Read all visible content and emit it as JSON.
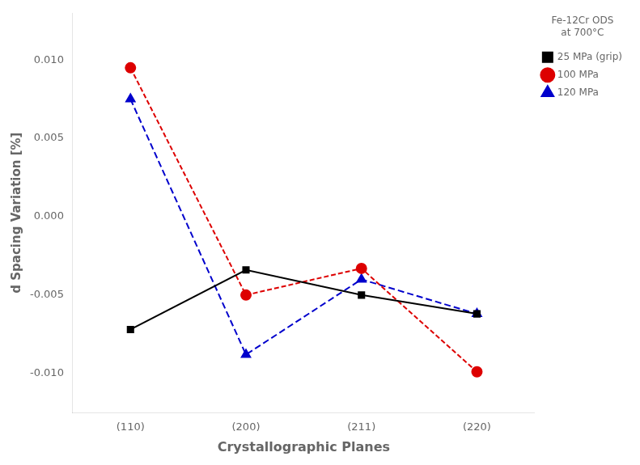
{
  "chart_data": {
    "type": "line",
    "xlabel": "Crystallographic Planes",
    "ylabel": "d Spacing Variation [%]",
    "legend_title": [
      "Fe-12Cr ODS",
      "at 700°C"
    ],
    "categories": [
      "(110)",
      "(200)",
      "(211)",
      "(220)"
    ],
    "series": [
      {
        "name": "25 MPa (grip)",
        "color": "#000000",
        "marker": "square",
        "line_style": "solid",
        "values": [
          -0.0072,
          -0.0034,
          -0.005,
          -0.0062
        ]
      },
      {
        "name": "100 MPa",
        "color": "#dd0000",
        "marker": "circle",
        "line_style": "dashed",
        "values": [
          0.0095,
          -0.005,
          -0.0033,
          -0.0099
        ]
      },
      {
        "name": "120 MPa",
        "color": "#0000cc",
        "marker": "triangle",
        "line_style": "dashed",
        "values": [
          0.0075,
          -0.0088,
          -0.004,
          -0.0062
        ]
      }
    ],
    "ylim": [
      -0.0125,
      0.013
    ],
    "yticks": [
      {
        "value": -0.01,
        "label": "-0.010"
      },
      {
        "value": -0.005,
        "label": "-0.005"
      },
      {
        "value": 0.0,
        "label": "0.000"
      },
      {
        "value": 0.005,
        "label": "0.005"
      },
      {
        "value": 0.01,
        "label": "0.010"
      }
    ],
    "grid": false,
    "legend": "upper right"
  }
}
